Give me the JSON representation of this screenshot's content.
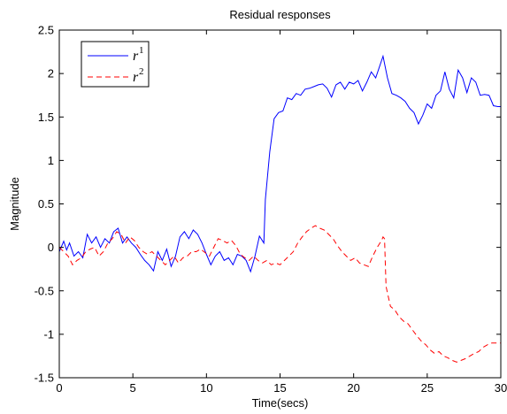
{
  "chart_data": {
    "type": "line",
    "title": "Residual responses",
    "xlabel": "Time(secs)",
    "ylabel": "Magnitude",
    "xlim": [
      0,
      30
    ],
    "ylim": [
      -1.5,
      2.5
    ],
    "xticks": [
      0,
      5,
      10,
      15,
      20,
      25,
      30
    ],
    "yticks": [
      -1.5,
      -1,
      -0.5,
      0,
      0.5,
      1,
      1.5,
      2,
      2.5
    ],
    "xtick_labels": [
      "0",
      "5",
      "10",
      "15",
      "20",
      "25",
      "30"
    ],
    "ytick_labels": [
      "-1.5",
      "-1",
      "-0.5",
      "0",
      "0.5",
      "1",
      "1.5",
      "2",
      "2.5"
    ],
    "grid": false,
    "legend_position": "top-left",
    "series": [
      {
        "name": "r",
        "name_superscript": "1",
        "color": "#0000ff",
        "style": "solid",
        "x": [
          0,
          0.3,
          0.5,
          0.7,
          1.0,
          1.3,
          1.6,
          1.9,
          2.2,
          2.5,
          2.8,
          3.1,
          3.4,
          3.7,
          4.0,
          4.3,
          4.6,
          4.9,
          5.2,
          5.5,
          5.8,
          6.1,
          6.4,
          6.7,
          7.0,
          7.3,
          7.6,
          7.9,
          8.2,
          8.5,
          8.8,
          9.1,
          9.4,
          9.7,
          10.0,
          10.3,
          10.6,
          10.9,
          11.2,
          11.5,
          11.8,
          12.1,
          12.4,
          12.7,
          13.0,
          13.3,
          13.6,
          13.9,
          14.0,
          14.3,
          14.6,
          14.9,
          15.2,
          15.5,
          15.8,
          16.1,
          16.4,
          16.7,
          17.0,
          17.3,
          17.6,
          17.9,
          18.2,
          18.5,
          18.8,
          19.1,
          19.4,
          19.7,
          20.0,
          20.3,
          20.6,
          20.9,
          21.2,
          21.5,
          21.8,
          22.0,
          22.3,
          22.6,
          22.9,
          23.2,
          23.5,
          23.8,
          24.1,
          24.4,
          24.7,
          25.0,
          25.3,
          25.6,
          25.9,
          26.2,
          26.5,
          26.8,
          27.1,
          27.4,
          27.7,
          28.0,
          28.3,
          28.6,
          28.9,
          29.2,
          29.5,
          29.8,
          30.0
        ],
        "y": [
          -0.05,
          0.07,
          -0.03,
          0.05,
          -0.1,
          -0.05,
          -0.12,
          0.15,
          0.05,
          0.12,
          0.0,
          0.1,
          0.05,
          0.18,
          0.22,
          0.05,
          0.12,
          0.05,
          0.0,
          -0.08,
          -0.15,
          -0.2,
          -0.27,
          -0.05,
          -0.15,
          -0.02,
          -0.22,
          -0.1,
          0.12,
          0.18,
          0.1,
          0.2,
          0.15,
          0.05,
          -0.08,
          -0.2,
          -0.1,
          -0.05,
          -0.15,
          -0.12,
          -0.2,
          -0.08,
          -0.1,
          -0.15,
          -0.28,
          -0.1,
          0.13,
          0.05,
          0.55,
          1.1,
          1.48,
          1.55,
          1.57,
          1.72,
          1.7,
          1.77,
          1.75,
          1.82,
          1.83,
          1.85,
          1.87,
          1.88,
          1.83,
          1.73,
          1.87,
          1.9,
          1.82,
          1.9,
          1.88,
          1.92,
          1.8,
          1.9,
          2.02,
          1.95,
          2.1,
          2.2,
          1.95,
          1.77,
          1.75,
          1.72,
          1.68,
          1.6,
          1.55,
          1.42,
          1.52,
          1.65,
          1.6,
          1.75,
          1.8,
          2.02,
          1.82,
          1.72,
          2.04,
          1.95,
          1.78,
          1.95,
          1.9,
          1.75,
          1.76,
          1.75,
          1.63,
          1.62,
          1.62
        ]
      },
      {
        "name": "r",
        "name_superscript": "2",
        "color": "#ff0000",
        "style": "dashed",
        "x": [
          0,
          0.3,
          0.6,
          0.9,
          1.2,
          1.5,
          1.8,
          2.1,
          2.4,
          2.7,
          3.0,
          3.3,
          3.6,
          3.9,
          4.2,
          4.5,
          4.8,
          5.1,
          5.4,
          5.7,
          6.0,
          6.3,
          6.6,
          6.9,
          7.2,
          7.5,
          7.8,
          8.1,
          8.4,
          8.7,
          9.0,
          9.3,
          9.6,
          9.9,
          10.2,
          10.5,
          10.8,
          11.1,
          11.4,
          11.7,
          12.0,
          12.3,
          12.6,
          12.9,
          13.2,
          13.5,
          13.8,
          14.1,
          14.4,
          14.7,
          15.0,
          15.3,
          15.6,
          15.9,
          16.2,
          16.5,
          16.8,
          17.1,
          17.4,
          17.7,
          18.0,
          18.3,
          18.6,
          18.9,
          19.2,
          19.5,
          19.8,
          20.1,
          20.4,
          20.7,
          21.0,
          21.3,
          21.6,
          21.9,
          22.0,
          22.1,
          22.2,
          22.5,
          22.8,
          23.1,
          23.4,
          23.7,
          24.0,
          24.3,
          24.6,
          24.9,
          25.2,
          25.5,
          25.8,
          26.1,
          26.4,
          26.7,
          27.0,
          27.3,
          27.6,
          27.9,
          28.2,
          28.5,
          28.8,
          29.1,
          29.4,
          29.7,
          30.0
        ],
        "y": [
          0.0,
          -0.05,
          -0.1,
          -0.2,
          -0.15,
          -0.12,
          -0.05,
          -0.02,
          0.0,
          -0.1,
          -0.05,
          0.05,
          0.1,
          0.18,
          0.15,
          0.05,
          0.12,
          0.08,
          0.0,
          -0.05,
          -0.08,
          -0.05,
          -0.1,
          -0.15,
          -0.2,
          -0.15,
          -0.1,
          -0.18,
          -0.12,
          -0.1,
          -0.05,
          -0.05,
          -0.02,
          -0.06,
          -0.1,
          0.0,
          0.1,
          0.08,
          0.05,
          0.08,
          0.02,
          -0.08,
          -0.12,
          -0.15,
          -0.1,
          -0.15,
          -0.18,
          -0.15,
          -0.2,
          -0.18,
          -0.2,
          -0.15,
          -0.1,
          -0.05,
          0.05,
          0.12,
          0.18,
          0.22,
          0.25,
          0.22,
          0.2,
          0.15,
          0.1,
          0.02,
          -0.05,
          -0.1,
          -0.15,
          -0.12,
          -0.18,
          -0.2,
          -0.22,
          -0.1,
          0.0,
          0.08,
          0.12,
          0.1,
          -0.45,
          -0.68,
          -0.72,
          -0.8,
          -0.85,
          -0.88,
          -0.95,
          -1.02,
          -1.08,
          -1.12,
          -1.18,
          -1.22,
          -1.2,
          -1.25,
          -1.27,
          -1.3,
          -1.32,
          -1.3,
          -1.28,
          -1.25,
          -1.22,
          -1.2,
          -1.15,
          -1.12,
          -1.1,
          -1.1,
          -1.1
        ]
      }
    ]
  }
}
